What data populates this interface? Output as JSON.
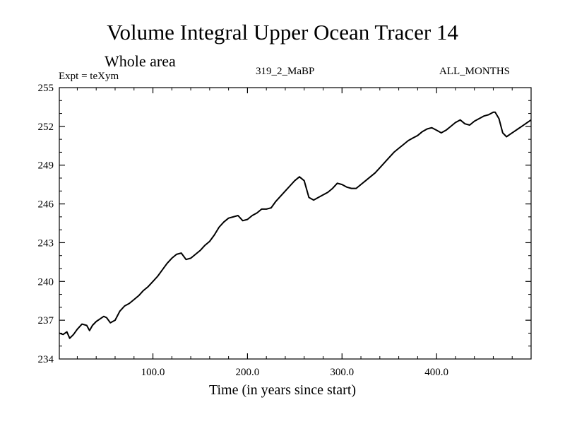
{
  "chart_data": {
    "type": "line",
    "title": "Volume Integral Upper Ocean Tracer 14",
    "subtitle": "Whole area",
    "annotations": {
      "experiment": "Expt = teXym",
      "run_id": "319_2_MaBP",
      "period": "ALL_MONTHS"
    },
    "xlabel": "Time (in years since start)",
    "ylabel": "",
    "xlim": [
      1,
      500
    ],
    "ylim": [
      234,
      255
    ],
    "x_ticks": [
      100,
      200,
      300,
      400
    ],
    "x_tick_labels": [
      "100.0",
      "200.0",
      "300.0",
      "400.0"
    ],
    "y_ticks": [
      234,
      237,
      240,
      243,
      246,
      249,
      252,
      255
    ],
    "y_tick_labels": [
      "234",
      "237",
      "240",
      "243",
      "246",
      "249",
      "252",
      "255"
    ],
    "grid": false,
    "series": [
      {
        "color": "#000000",
        "x": [
          1,
          5,
          9,
          12,
          16,
          20,
          25,
          30,
          33,
          36,
          40,
          44,
          48,
          51,
          55,
          60,
          65,
          70,
          75,
          80,
          85,
          90,
          95,
          100,
          105,
          110,
          115,
          120,
          125,
          130,
          135,
          140,
          145,
          150,
          155,
          160,
          165,
          170,
          175,
          180,
          185,
          190,
          195,
          200,
          205,
          210,
          215,
          220,
          225,
          230,
          235,
          240,
          245,
          250,
          255,
          260,
          265,
          270,
          275,
          280,
          285,
          290,
          295,
          300,
          305,
          310,
          315,
          320,
          325,
          330,
          335,
          340,
          345,
          350,
          355,
          360,
          365,
          370,
          375,
          380,
          385,
          390,
          395,
          400,
          405,
          410,
          415,
          420,
          425,
          430,
          435,
          440,
          445,
          450,
          455,
          460,
          462,
          466,
          470,
          474,
          478,
          482,
          486,
          490,
          494,
          500
        ],
        "values": [
          236.0,
          235.9,
          236.1,
          235.6,
          235.9,
          236.3,
          236.7,
          236.6,
          236.2,
          236.6,
          236.9,
          237.1,
          237.3,
          237.2,
          236.8,
          237.0,
          237.7,
          238.1,
          238.3,
          238.6,
          238.9,
          239.3,
          239.6,
          240.0,
          240.4,
          240.9,
          241.4,
          241.8,
          242.1,
          242.2,
          241.7,
          241.8,
          242.1,
          242.4,
          242.8,
          243.1,
          243.6,
          244.2,
          244.6,
          244.9,
          245.0,
          245.1,
          244.7,
          244.8,
          245.1,
          245.3,
          245.6,
          245.6,
          245.7,
          246.2,
          246.6,
          247.0,
          247.4,
          247.8,
          248.1,
          247.8,
          246.5,
          246.3,
          246.5,
          246.7,
          246.9,
          247.2,
          247.6,
          247.5,
          247.3,
          247.2,
          247.2,
          247.5,
          247.8,
          248.1,
          248.4,
          248.8,
          249.2,
          249.6,
          250.0,
          250.3,
          250.6,
          250.9,
          251.1,
          251.3,
          251.6,
          251.8,
          251.9,
          251.7,
          251.5,
          251.7,
          252.0,
          252.3,
          252.5,
          252.2,
          252.1,
          252.4,
          252.6,
          252.8,
          252.9,
          253.1,
          253.1,
          252.6,
          251.5,
          251.2,
          251.4,
          251.6,
          251.8,
          252.0,
          252.2,
          252.5
        ]
      }
    ]
  }
}
